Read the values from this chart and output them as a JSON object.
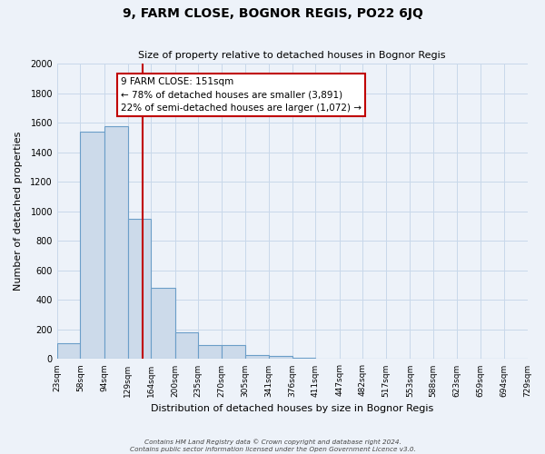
{
  "title": "9, FARM CLOSE, BOGNOR REGIS, PO22 6JQ",
  "subtitle": "Size of property relative to detached houses in Bognor Regis",
  "xlabel": "Distribution of detached houses by size in Bognor Regis",
  "ylabel": "Number of detached properties",
  "bin_labels": [
    "23sqm",
    "58sqm",
    "94sqm",
    "129sqm",
    "164sqm",
    "200sqm",
    "235sqm",
    "270sqm",
    "305sqm",
    "341sqm",
    "376sqm",
    "411sqm",
    "447sqm",
    "482sqm",
    "517sqm",
    "553sqm",
    "588sqm",
    "623sqm",
    "659sqm",
    "694sqm",
    "729sqm"
  ],
  "bar_values": [
    110,
    1540,
    1575,
    950,
    480,
    180,
    95,
    95,
    30,
    20,
    10,
    0,
    0,
    0,
    0,
    0,
    0,
    0,
    0,
    0
  ],
  "bar_color": "#ccdaea",
  "bar_edge_color": "#6b9ec8",
  "property_line_x": 151,
  "bin_edges": [
    23,
    58,
    94,
    129,
    164,
    200,
    235,
    270,
    305,
    341,
    376,
    411,
    447,
    482,
    517,
    553,
    588,
    623,
    659,
    694,
    729
  ],
  "annotation_title": "9 FARM CLOSE: 151sqm",
  "annotation_line1": "← 78% of detached houses are smaller (3,891)",
  "annotation_line2": "22% of semi-detached houses are larger (1,072) →",
  "annotation_box_color": "#ffffff",
  "annotation_box_edge": "#c00000",
  "vline_color": "#c00000",
  "ylim": [
    0,
    2000
  ],
  "yticks": [
    0,
    200,
    400,
    600,
    800,
    1000,
    1200,
    1400,
    1600,
    1800,
    2000
  ],
  "footnote1": "Contains HM Land Registry data © Crown copyright and database right 2024.",
  "footnote2": "Contains public sector information licensed under the Open Government Licence v3.0.",
  "bg_color": "#edf2f9",
  "grid_color": "#d8e4f0",
  "title_fontsize": 10,
  "subtitle_fontsize": 8,
  "axis_label_fontsize": 8,
  "tick_fontsize": 7,
  "annot_fontsize": 7.5
}
